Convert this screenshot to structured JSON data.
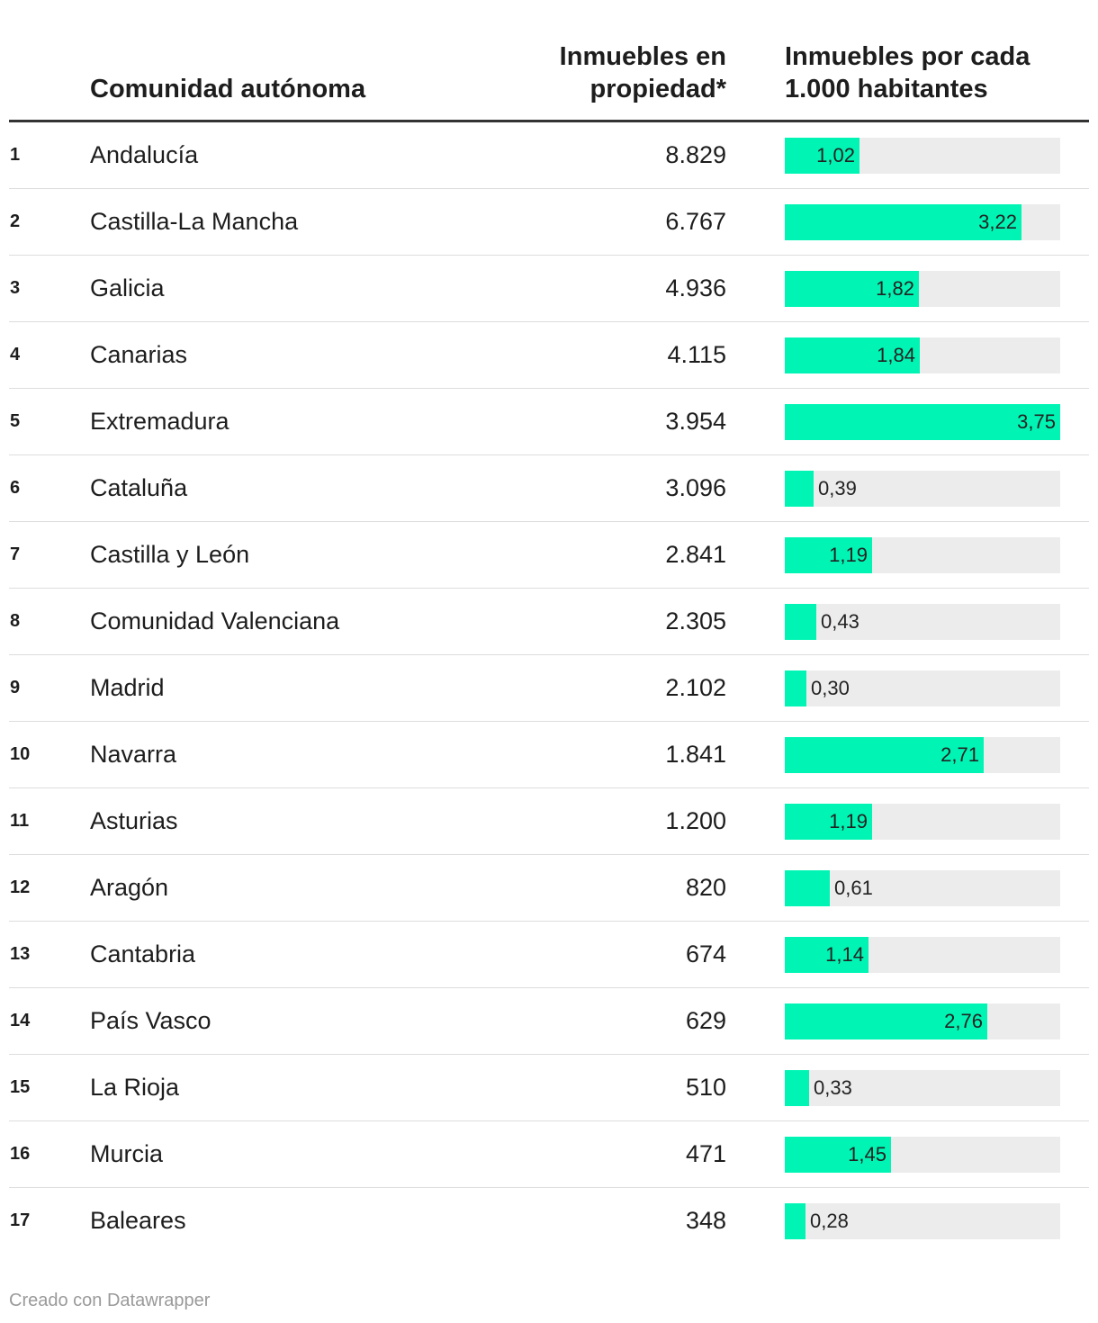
{
  "header": {
    "region_label": "Comunidad autónoma",
    "count_label_line1": "Inmuebles en",
    "count_label_line2": "propiedad*",
    "rate_label_line1": "Inmuebles por cada",
    "rate_label_line2": "1.000 habitantes"
  },
  "colors": {
    "bar": "#00f5b4",
    "track": "#ececec"
  },
  "chart_data": {
    "type": "table",
    "columns": [
      "Comunidad autónoma",
      "Inmuebles en propiedad*",
      "Inmuebles por cada 1.000 habitantes"
    ],
    "bar_max": 3.75,
    "rows": [
      {
        "rank": "1",
        "region": "Andalucía",
        "count": "8.829",
        "rate": 1.02,
        "rate_label": "1,02"
      },
      {
        "rank": "2",
        "region": "Castilla-La Mancha",
        "count": "6.767",
        "rate": 3.22,
        "rate_label": "3,22"
      },
      {
        "rank": "3",
        "region": "Galicia",
        "count": "4.936",
        "rate": 1.82,
        "rate_label": "1,82"
      },
      {
        "rank": "4",
        "region": "Canarias",
        "count": "4.115",
        "rate": 1.84,
        "rate_label": "1,84"
      },
      {
        "rank": "5",
        "region": "Extremadura",
        "count": "3.954",
        "rate": 3.75,
        "rate_label": "3,75"
      },
      {
        "rank": "6",
        "region": "Cataluña",
        "count": "3.096",
        "rate": 0.39,
        "rate_label": "0,39"
      },
      {
        "rank": "7",
        "region": "Castilla y León",
        "count": "2.841",
        "rate": 1.19,
        "rate_label": "1,19"
      },
      {
        "rank": "8",
        "region": "Comunidad Valenciana",
        "count": "2.305",
        "rate": 0.43,
        "rate_label": "0,43"
      },
      {
        "rank": "9",
        "region": "Madrid",
        "count": "2.102",
        "rate": 0.3,
        "rate_label": "0,30"
      },
      {
        "rank": "10",
        "region": "Navarra",
        "count": "1.841",
        "rate": 2.71,
        "rate_label": "2,71"
      },
      {
        "rank": "11",
        "region": "Asturias",
        "count": "1.200",
        "rate": 1.19,
        "rate_label": "1,19"
      },
      {
        "rank": "12",
        "region": "Aragón",
        "count": "820",
        "rate": 0.61,
        "rate_label": "0,61"
      },
      {
        "rank": "13",
        "region": "Cantabria",
        "count": "674",
        "rate": 1.14,
        "rate_label": "1,14"
      },
      {
        "rank": "14",
        "region": "País Vasco",
        "count": "629",
        "rate": 2.76,
        "rate_label": "2,76"
      },
      {
        "rank": "15",
        "region": "La Rioja",
        "count": "510",
        "rate": 0.33,
        "rate_label": "0,33"
      },
      {
        "rank": "16",
        "region": "Murcia",
        "count": "471",
        "rate": 1.45,
        "rate_label": "1,45"
      },
      {
        "rank": "17",
        "region": "Baleares",
        "count": "348",
        "rate": 0.28,
        "rate_label": "0,28"
      }
    ]
  },
  "footer": {
    "credit": "Creado con Datawrapper"
  }
}
